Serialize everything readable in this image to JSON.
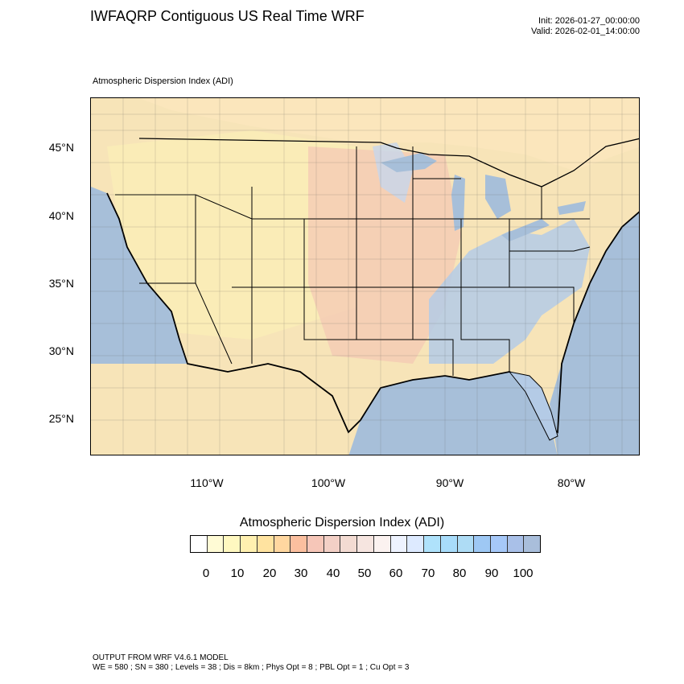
{
  "header": {
    "title": "IWFAQRP Contiguous US Real Time WRF",
    "init": "Init: 2026-01-27_00:00:00",
    "valid": "Valid: 2026-02-01_14:00:00"
  },
  "map": {
    "field_label": "Atmospheric Dispersion Index   (ADI)",
    "lat_labels": [
      "45°N",
      "40°N",
      "35°N",
      "30°N",
      "25°N"
    ],
    "lon_labels": [
      "110°W",
      "100°W",
      "90°W",
      "80°W"
    ],
    "colors": {
      "ocean": "#a7bfd9",
      "land_warm": "#f7e4b8",
      "land_pink": "#f3c8b4",
      "land_yellow": "#fbf0b6",
      "land_blue": "#b4cbe6",
      "boundary": "#000000"
    }
  },
  "colorbar": {
    "title": "Atmospheric Dispersion Index  (ADI)",
    "colors": [
      "#ffffff",
      "#fffbd5",
      "#fff8c0",
      "#fff0b0",
      "#ffe3a0",
      "#ffd7a0",
      "#fbbf9f",
      "#f6c6b8",
      "#f3d0c6",
      "#f3dbd2",
      "#f6e5e0",
      "#fbf2f0",
      "#eef3ff",
      "#ddeaff",
      "#afe2fb",
      "#a8dcfa",
      "#aedcf5",
      "#9ec8f4",
      "#a6c8f8",
      "#a9c0e8",
      "#a9bedb"
    ],
    "tick_labels": [
      "0",
      "10",
      "20",
      "30",
      "40",
      "50",
      "60",
      "70",
      "80",
      "90",
      "100"
    ]
  },
  "footer": {
    "line1": "OUTPUT FROM WRF V4.6.1 MODEL",
    "line2": "WE = 580 ; SN = 380 ; Levels = 38 ; Dis = 8km ; Phys Opt = 8 ; PBL Opt = 1 ; Cu Opt = 3"
  }
}
